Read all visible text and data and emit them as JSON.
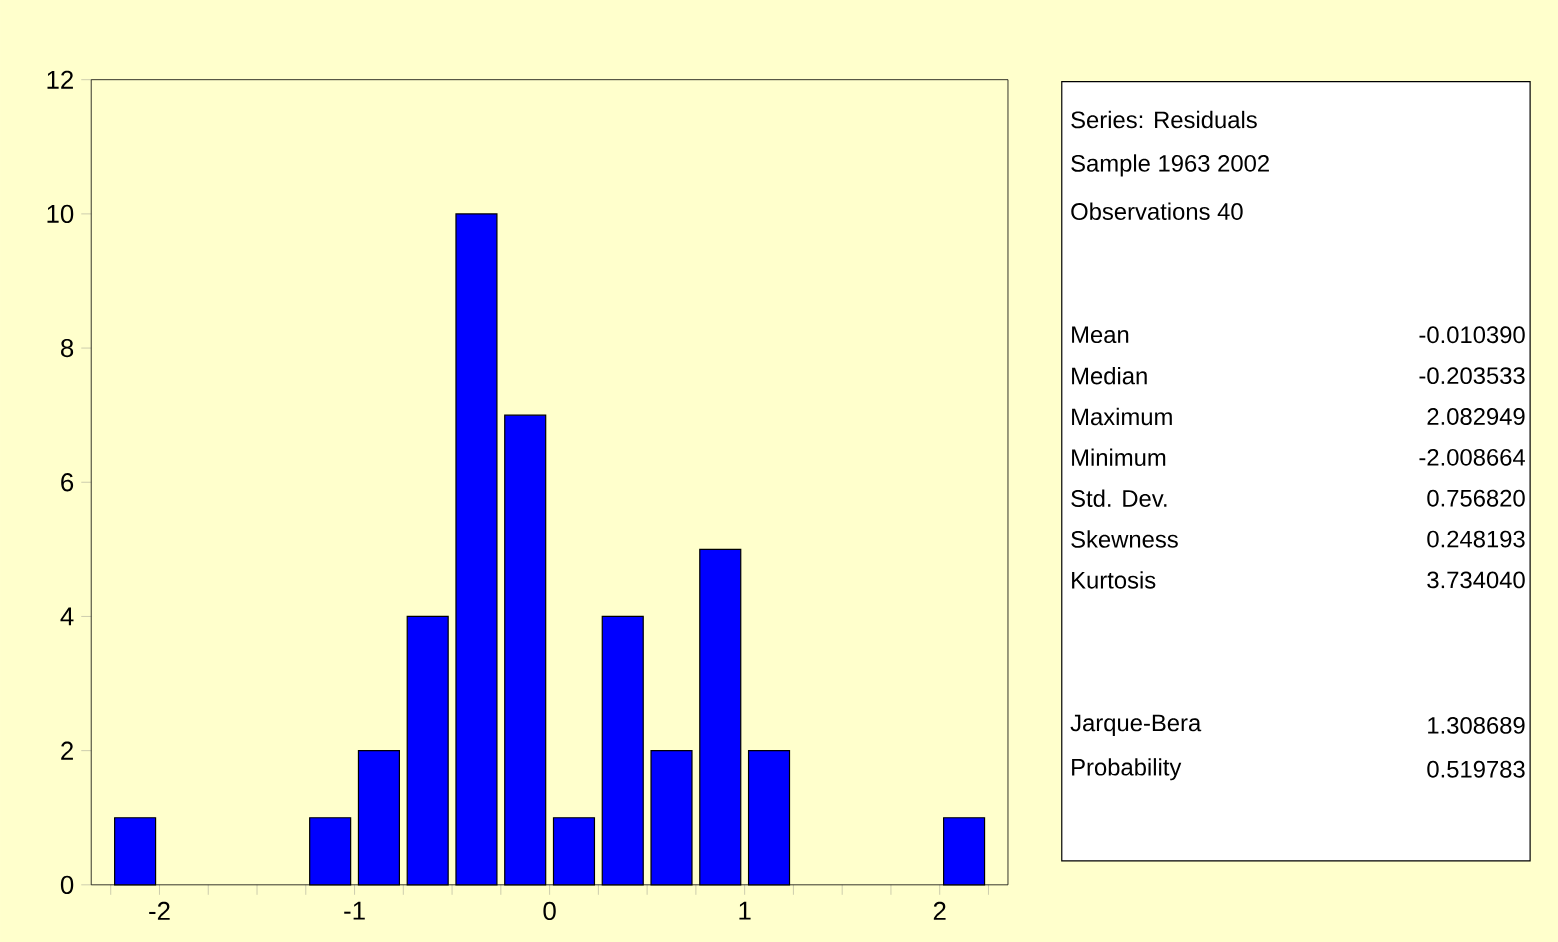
{
  "chart_data": {
    "type": "histogram",
    "bins": [
      -2.25,
      -2.0,
      -1.75,
      -1.5,
      -1.25,
      -1.0,
      -0.75,
      -0.5,
      -0.25,
      0.0,
      0.25,
      0.5,
      0.75,
      1.0,
      1.25,
      1.5,
      1.75,
      2.0,
      2.25
    ],
    "values": [
      1,
      0,
      0,
      0,
      1,
      2,
      4,
      10,
      7,
      1,
      4,
      2,
      5,
      2,
      0,
      0,
      0,
      1
    ],
    "color": "#0000ff",
    "xlim": [
      -2.35,
      2.35
    ],
    "xticks": [
      {
        "value": -2.25,
        "label": null
      },
      -2,
      {
        "value": -1.75,
        "label": null
      },
      {
        "value": -1.5,
        "label": null
      },
      {
        "value": -1.25,
        "label": null
      },
      -1,
      {
        "value": -0.75,
        "label": null
      },
      {
        "value": -0.5,
        "label": null
      },
      {
        "value": -0.25,
        "label": null
      },
      0,
      {
        "value": 0.25,
        "label": null
      },
      {
        "value": 0.5,
        "label": null
      },
      {
        "value": 0.75,
        "label": null
      },
      1,
      {
        "value": 1.25,
        "label": null
      },
      {
        "value": 1.5,
        "label": null
      },
      {
        "value": 1.75,
        "label": null
      },
      2,
      {
        "value": 2.25,
        "label": null
      }
    ],
    "ylim": [
      0,
      12
    ],
    "yticks": [
      0,
      2,
      4,
      6,
      8,
      10,
      12
    ],
    "annotations": [
      "Series: Residuals",
      "Sample 1963 2002",
      "Observations 40",
      "Mean",
      "-0.010390",
      "Median",
      "-0.203533",
      "Maximum",
      "2.082949",
      "Minimum",
      "-2.008664",
      "Std. Dev.",
      "0.756820",
      "Skewness",
      "0.248193",
      "Kurtosis",
      "3.734040",
      "Jarque-Bera",
      "1.308689",
      "Probability",
      "0.519783"
    ]
  }
}
